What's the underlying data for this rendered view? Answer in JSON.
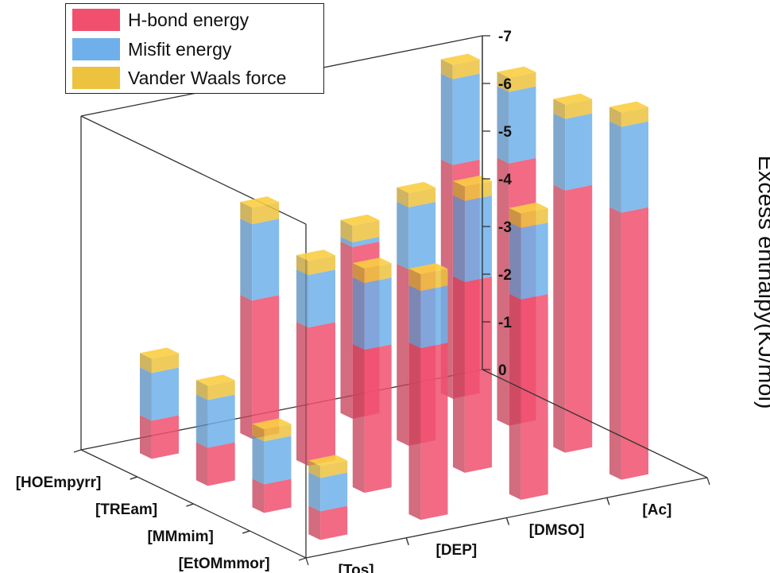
{
  "chart_data": {
    "type": "bar3d-stacked",
    "zlabel": "Excess enthalpy(KJ/mol)",
    "zlim": [
      0,
      -7
    ],
    "zticks": [
      0,
      -1,
      -2,
      -3,
      -4,
      -5,
      -6,
      -7
    ],
    "x_categories": [
      "[Tos]",
      "[DEP]",
      "[DMSO]",
      "[Ac]"
    ],
    "y_categories": [
      "[EtOMmmor]",
      "[MMmim]",
      "[TREam]",
      "[HOEmpyrr]"
    ],
    "legend_position": "top-left",
    "series": [
      {
        "name": "H-bond energy",
        "color": "#f0506e"
      },
      {
        "name": "Misfit energy",
        "color": "#6fb0ea"
      },
      {
        "name": "Vander Waals force",
        "color": "#ecc23f"
      }
    ],
    "bars": [
      {
        "x": "[Tos]",
        "y": "[EtOMmmor]",
        "values": [
          -0.6,
          -0.7,
          -0.25
        ]
      },
      {
        "x": "[Tos]",
        "y": "[MMmim]",
        "values": [
          -0.6,
          -0.9,
          -0.25
        ]
      },
      {
        "x": "[Tos]",
        "y": "[TREam]",
        "values": [
          -0.8,
          -1.0,
          -0.3
        ]
      },
      {
        "x": "[Tos]",
        "y": "[HOEmpyrr]",
        "values": [
          -0.8,
          -1.0,
          -0.3
        ]
      },
      {
        "x": "[DEP]",
        "y": "[EtOMmmor]",
        "values": [
          -3.6,
          -1.2,
          -0.35
        ]
      },
      {
        "x": "[DEP]",
        "y": "[MMmim]",
        "values": [
          -3.0,
          -1.4,
          -0.3
        ]
      },
      {
        "x": "[DEP]",
        "y": "[TREam]",
        "values": [
          -2.9,
          -1.1,
          -0.3
        ]
      },
      {
        "x": "[DEP]",
        "y": "[HOEmpyrr]",
        "values": [
          -2.9,
          -1.6,
          -0.35
        ]
      },
      {
        "x": "[DMSO]",
        "y": "[EtOMmmor]",
        "values": [
          -4.2,
          -1.5,
          -0.3
        ]
      },
      {
        "x": "[DMSO]",
        "y": "[MMmim]",
        "values": [
          -4.0,
          -1.7,
          -0.3
        ]
      },
      {
        "x": "[DMSO]",
        "y": "[TREam]",
        "values": [
          -3.7,
          -1.3,
          -0.3
        ]
      },
      {
        "x": "[DMSO]",
        "y": "[HOEmpyrr]",
        "values": [
          -3.6,
          -0.1,
          -0.35
        ]
      },
      {
        "x": "[Ac]",
        "y": "[EtOMmmor]",
        "values": [
          -5.6,
          -1.8,
          -0.3
        ]
      },
      {
        "x": "[Ac]",
        "y": "[MMmim]",
        "values": [
          -5.5,
          -1.5,
          -0.3
        ]
      },
      {
        "x": "[Ac]",
        "y": "[TREam]",
        "values": [
          -5.5,
          -1.5,
          -0.3
        ]
      },
      {
        "x": "[Ac]",
        "y": "[HOEmpyrr]",
        "values": [
          -4.9,
          -1.8,
          -0.3
        ]
      }
    ]
  }
}
